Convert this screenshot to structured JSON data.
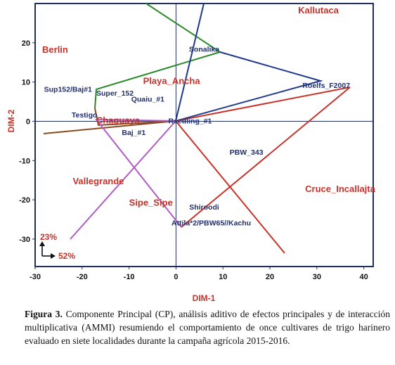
{
  "chart_data": {
    "type": "scatter",
    "xlabel": "DIM-1",
    "ylabel": "DIM-2",
    "xlim": [
      -30,
      42
    ],
    "ylim": [
      -37,
      30
    ],
    "xticks": [
      -30,
      -20,
      -10,
      0,
      10,
      20,
      30,
      40
    ],
    "yticks": [
      -30,
      -20,
      -10,
      0,
      10,
      20
    ],
    "axis_corner_labels": {
      "vertical": "23%",
      "horizontal": "52%"
    },
    "environments": [
      {
        "name": "Kallutaca",
        "x": 26,
        "y": 27.5
      },
      {
        "name": "Berlin",
        "x": -28.5,
        "y": 17.5
      },
      {
        "name": "Playa_Ancha",
        "x": -7,
        "y": 9.5
      },
      {
        "name": "Chaguaya",
        "x": -17,
        "y": -0.5
      },
      {
        "name": "Vallegrande",
        "x": -22,
        "y": -16
      },
      {
        "name": "Sipe_Sipe",
        "x": -10,
        "y": -21.5
      },
      {
        "name": "Cruce_Incallajta",
        "x": 27.5,
        "y": -18
      }
    ],
    "genotypes": [
      {
        "name": "Sonalika",
        "x": 6,
        "y": 17.7
      },
      {
        "name": "Roelfs_F2007",
        "x": 32,
        "y": 8.5
      },
      {
        "name": "Sup152/Baj#1",
        "x": -23,
        "y": 7.5
      },
      {
        "name": "Super_152",
        "x": -13,
        "y": 6.5
      },
      {
        "name": "Quaiu_#1",
        "x": -6,
        "y": 5
      },
      {
        "name": "Testigo",
        "x": -19.5,
        "y": 1
      },
      {
        "name": "Reedling_#1",
        "x": 3,
        "y": -0.5
      },
      {
        "name": "Baj_#1",
        "x": -9,
        "y": -3.5
      },
      {
        "name": "PBW_343",
        "x": 15,
        "y": -8.5
      },
      {
        "name": "Shiroodi",
        "x": 6,
        "y": -22.5
      },
      {
        "name": "Attila*2/PBW65//Kachu",
        "x": 7.5,
        "y": -26.5
      }
    ]
  },
  "caption": {
    "label": "Figura 3.",
    "text": "Componente Principal (CP), análisis aditivo de efectos principales y de interacción multiplicativa (AMMI) resumiendo el comportamiento de once cultivares de trigo harinero evaluado en siete localidades durante la campaña agrícola 2015-2016."
  }
}
